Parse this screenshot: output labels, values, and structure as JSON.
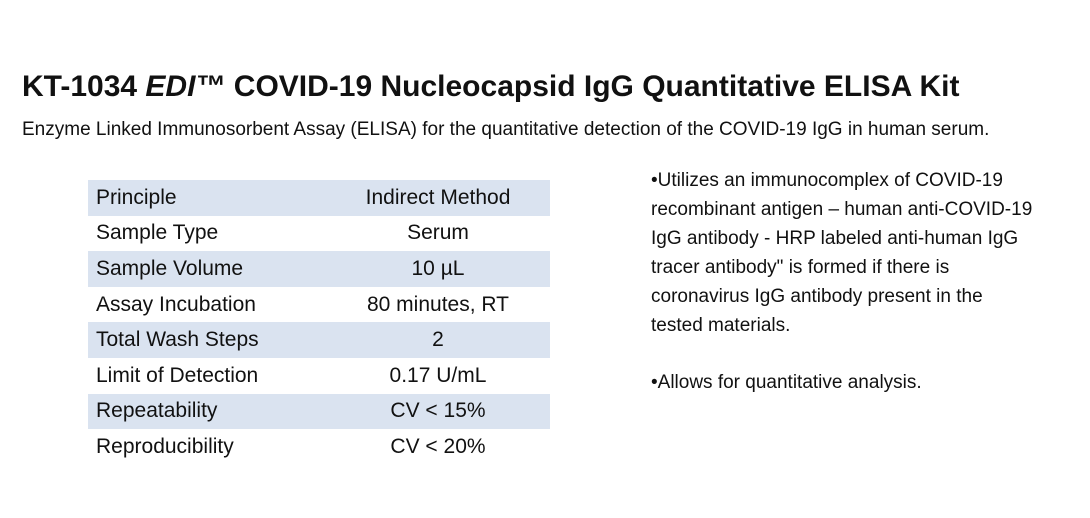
{
  "header": {
    "title": {
      "prefix": "KT-1034",
      "brand": "EDI™",
      "rest": "COVID-19 Nucleocapsid IgG Quantitative ELISA Kit"
    },
    "subtitle": "Enzyme Linked Immunosorbent Assay (ELISA) for the quantitative detection of the COVID-19 IgG in human serum."
  },
  "table": {
    "rows": [
      [
        "Principle",
        "Indirect Method"
      ],
      [
        "Sample Type",
        "Serum"
      ],
      [
        "Sample Volume",
        "10 µL"
      ],
      [
        "Assay Incubation",
        "80 minutes, RT"
      ],
      [
        "Total Wash Steps",
        "2"
      ],
      [
        "Limit of Detection",
        "0.17 U/mL"
      ],
      [
        "Repeatability",
        "CV < 15%"
      ],
      [
        "Reproducibility",
        "CV < 20%"
      ]
    ]
  },
  "notes": [
    "•Utilizes an immunocomplex of COVID-19 recombinant antigen – human anti-COVID-19 IgG antibody - HRP labeled anti-human IgG tracer antibody\" is formed if there is coronavirus IgG antibody present in the tested materials.",
    "•Allows for quantitative analysis."
  ]
}
